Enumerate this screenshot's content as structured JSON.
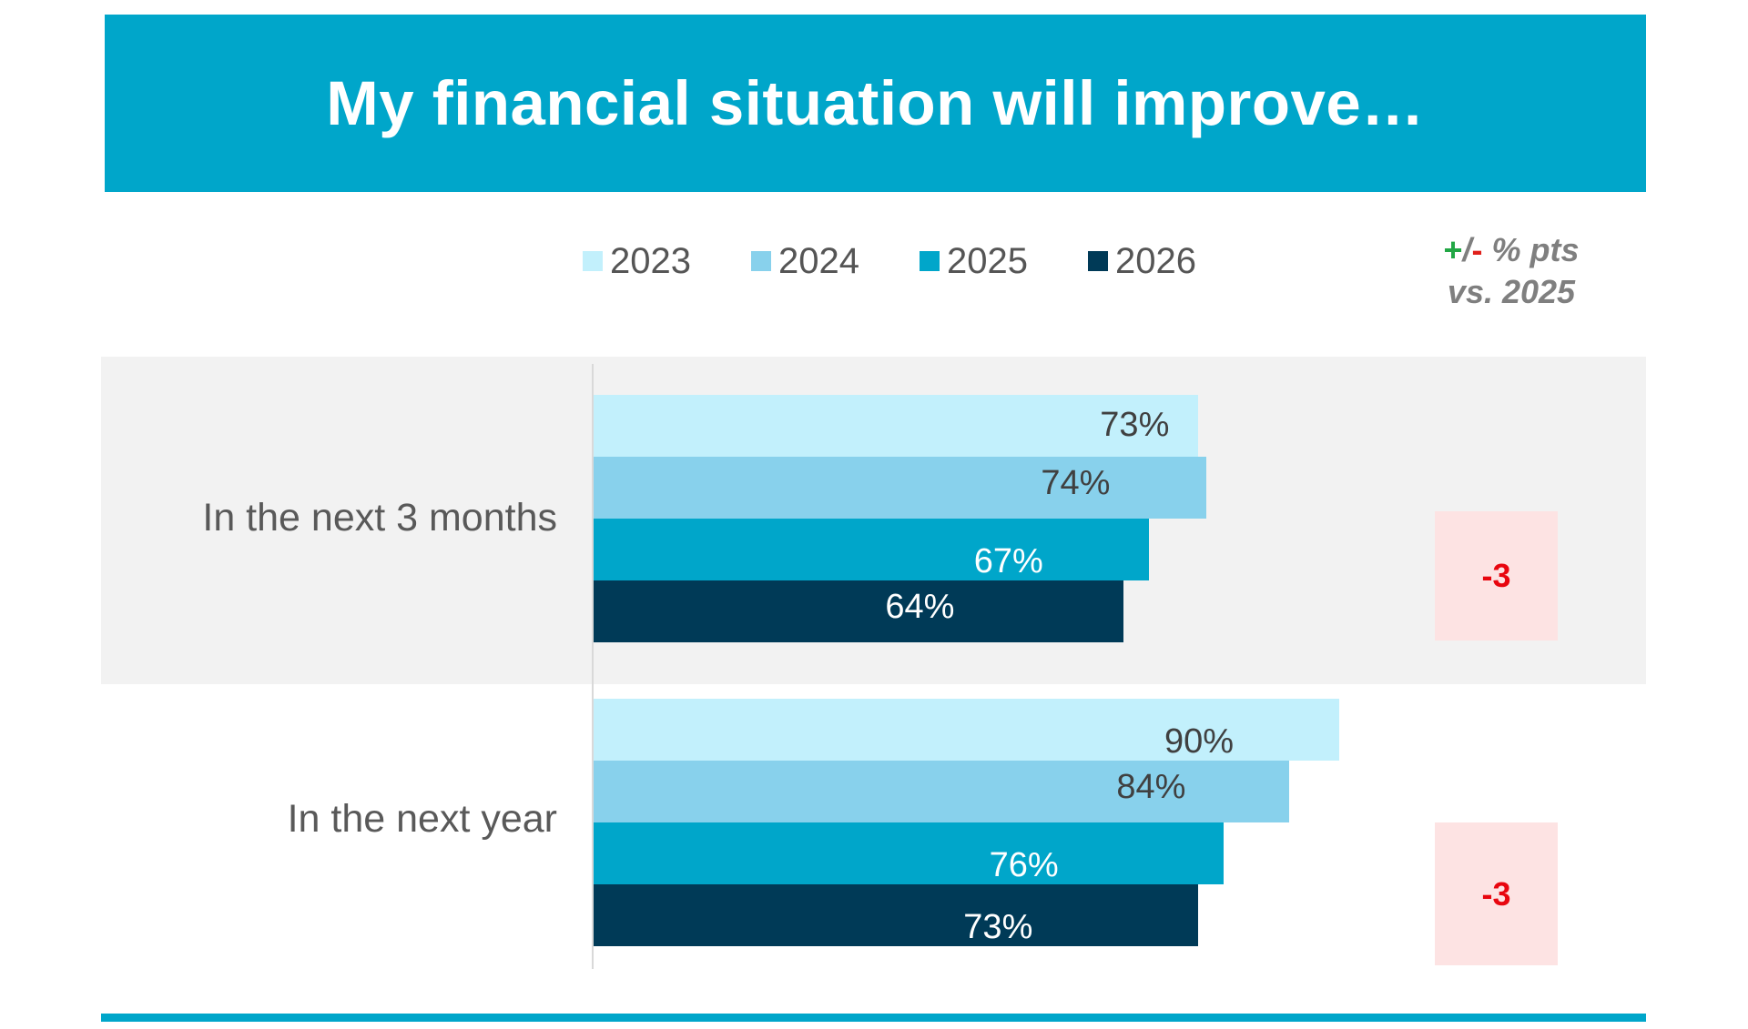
{
  "header": {
    "title": "My financial situation will improve…"
  },
  "diff_header": {
    "plus": "+",
    "slash": "/",
    "minus": "-",
    "rest": " % pts",
    "line2": "vs. 2025"
  },
  "colors": {
    "header_bg": "#00A6CA",
    "2023": "#C2F0FC",
    "2024": "#88D1EC",
    "2025": "#00A6CA",
    "2026": "#003A57",
    "band_grey": "#F2F2F2",
    "diff_box_bg": "#FDE3E3",
    "diff_negative": "#E8060F"
  },
  "chart_data": {
    "type": "bar",
    "orientation": "horizontal",
    "title": "My financial situation will improve…",
    "categories": [
      "In the next 3 months",
      "In the next year"
    ],
    "series": [
      {
        "name": "2023",
        "values": [
          73,
          90
        ],
        "labels": [
          "73%",
          "90%"
        ]
      },
      {
        "name": "2024",
        "values": [
          74,
          84
        ],
        "labels": [
          "74%",
          "84%"
        ]
      },
      {
        "name": "2025",
        "values": [
          67,
          76
        ],
        "labels": [
          "67%",
          "76%"
        ]
      },
      {
        "name": "2026",
        "values": [
          64,
          73
        ],
        "labels": [
          "64%",
          "73%"
        ]
      }
    ],
    "unit": "%",
    "xlim": [
      0,
      100
    ],
    "legend_position": "top",
    "grid": false,
    "diff_vs_2025": [
      "-3",
      "-3"
    ]
  }
}
